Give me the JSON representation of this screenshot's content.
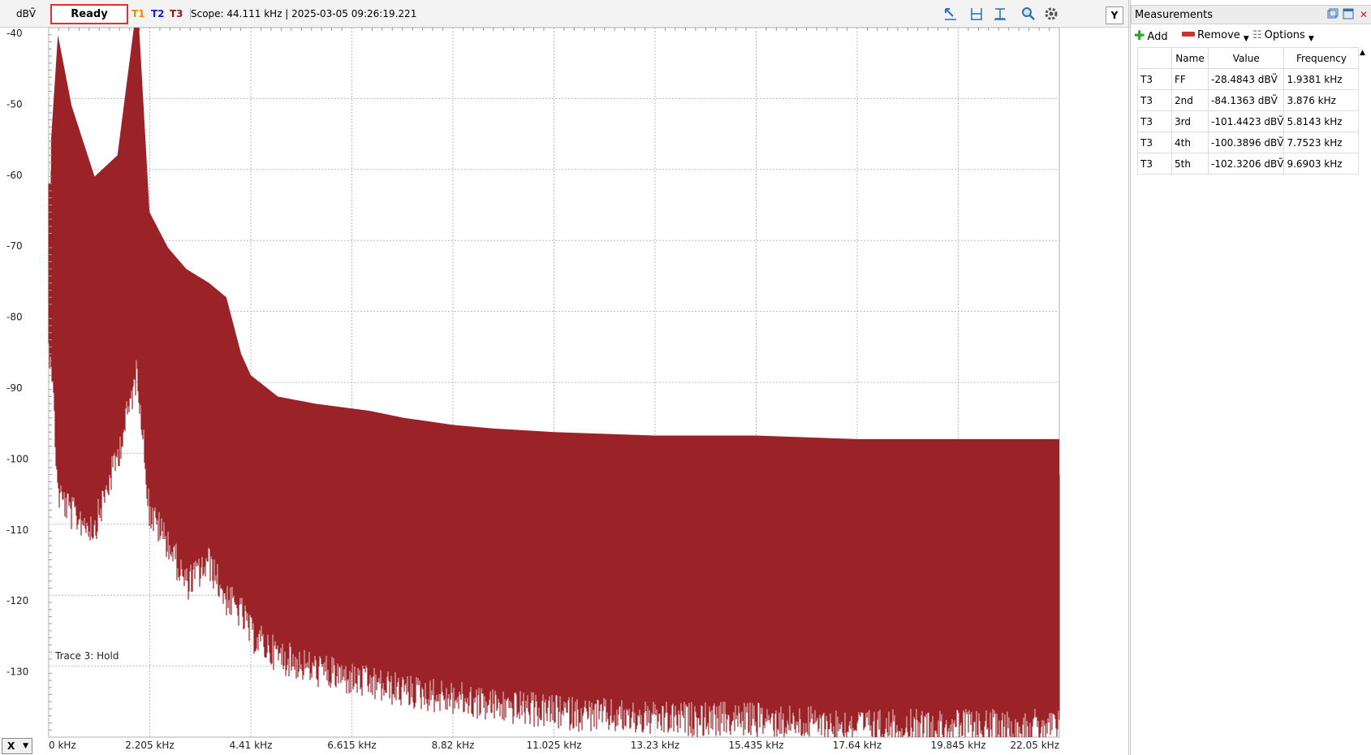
{
  "toolbar": {
    "unit": "dBṼ",
    "status": "Ready",
    "traces": [
      "T1",
      "T2",
      "T3"
    ],
    "scope_info": "Scope: 44.111 kHz | 2025-03-05 09:26:19.221",
    "y_button": "Y",
    "icons": [
      "cursor-arrow-icon",
      "horizontal-cursor-icon",
      "vertical-cursor-icon",
      "zoom-icon",
      "settings-gear-icon"
    ]
  },
  "plot": {
    "y_ticks": [
      "-40",
      "-50",
      "-60",
      "-70",
      "-80",
      "-90",
      "-100",
      "-110",
      "-120",
      "-130",
      "-140"
    ],
    "x_ticks": [
      "0 kHz",
      "2.205 kHz",
      "4.41 kHz",
      "6.615 kHz",
      "8.82 kHz",
      "11.025 kHz",
      "13.23 kHz",
      "15.435 kHz",
      "17.64 kHz",
      "19.845 kHz",
      "22.05 kHz"
    ],
    "trace_note": "Trace 3: Hold",
    "trace_color": "#9b2226",
    "x_axis_button": "X"
  },
  "chart_data": {
    "type": "area",
    "xlabel": "",
    "ylabel": "dBṼ",
    "xlim": [
      0,
      22.05
    ],
    "ylim": [
      -140,
      -40
    ],
    "grid": true,
    "series": [
      {
        "x": [
          0.05,
          0.2,
          0.5,
          1.0,
          1.5,
          1.9381,
          2.2,
          2.6,
          3.0,
          3.5,
          3.876,
          4.2,
          4.41,
          5.0,
          5.8143,
          7.0,
          7.7523,
          8.82,
          9.6903,
          11.025,
          13.23,
          15.435,
          17.64,
          19.845,
          22.05
        ],
        "y_top": [
          -60,
          -45,
          -55,
          -65,
          -62,
          -40,
          -70,
          -75,
          -78,
          -80,
          -82,
          -90,
          -93,
          -96,
          -97,
          -98,
          -99,
          -100,
          -100.5,
          -101,
          -101.5,
          -101.5,
          -102,
          -102,
          -102
        ],
        "y_bottom": [
          -85,
          -105,
          -108,
          -110,
          -100,
          -88,
          -108,
          -112,
          -118,
          -115,
          -120,
          -122,
          -125,
          -128,
          -130,
          -132,
          -133,
          -134,
          -135,
          -136,
          -137,
          -137,
          -138,
          -138,
          -138
        ]
      }
    ]
  },
  "measurements": {
    "title": "Measurements",
    "add_label": "Add",
    "remove_label": "Remove",
    "options_label": "Options",
    "columns": [
      "",
      "Name",
      "Value",
      "Frequency"
    ],
    "rows": [
      {
        "trace": "T3",
        "name": "FF",
        "value": "-28.4843 dBṼ",
        "freq": "1.9381 kHz"
      },
      {
        "trace": "T3",
        "name": "2nd",
        "value": "-84.1363 dBṼ",
        "freq": "3.876 kHz"
      },
      {
        "trace": "T3",
        "name": "3rd",
        "value": "-101.4423 dBṼ",
        "freq": "5.8143 kHz"
      },
      {
        "trace": "T3",
        "name": "4th",
        "value": "-100.3896 dBṼ",
        "freq": "7.7523 kHz"
      },
      {
        "trace": "T3",
        "name": "5th",
        "value": "-102.3206 dBṼ",
        "freq": "9.6903 kHz"
      }
    ]
  }
}
